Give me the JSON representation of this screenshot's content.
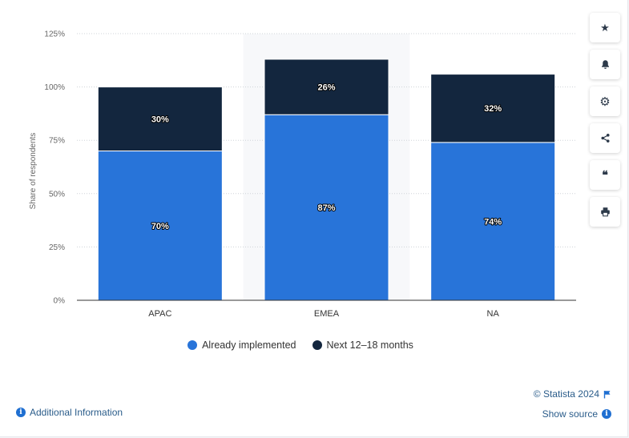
{
  "chart_data": {
    "type": "bar",
    "stacked": true,
    "categories": [
      "APAC",
      "EMEA",
      "NA"
    ],
    "series": [
      {
        "name": "Already implemented",
        "values": [
          70,
          87,
          74
        ],
        "labels": [
          "70%",
          "87%",
          "74%"
        ],
        "color": "#2874d9"
      },
      {
        "name": "Next 12-18 months",
        "values": [
          30,
          26,
          32
        ],
        "labels": [
          "30%",
          "26%",
          "32%"
        ],
        "color": "#13263e"
      }
    ],
    "ylabel": "Share of respondents",
    "ylim": [
      0,
      125
    ],
    "yticks": [
      0,
      25,
      50,
      75,
      100,
      125
    ],
    "ytick_labels": [
      "0%",
      "25%",
      "50%",
      "75%",
      "100%",
      "125%"
    ],
    "highlighted_category": "EMEA",
    "grid": true,
    "legend_position": "bottom"
  },
  "legend": [
    {
      "label": "Already implemented",
      "color": "#2874d9"
    },
    {
      "label": "Next 12–18 months",
      "color": "#13263e"
    }
  ],
  "toolbar": [
    {
      "icon": "star-icon",
      "glyph": "★"
    },
    {
      "icon": "bell-icon",
      "glyph": "bell"
    },
    {
      "icon": "gear-icon",
      "glyph": "⚙"
    },
    {
      "icon": "share-icon",
      "glyph": "share"
    },
    {
      "icon": "quote-icon",
      "glyph": "❝"
    },
    {
      "icon": "print-icon",
      "glyph": "print"
    }
  ],
  "footer": {
    "copyright": "© Statista 2024",
    "show_source": "Show source",
    "additional_info": "Additional Information"
  }
}
